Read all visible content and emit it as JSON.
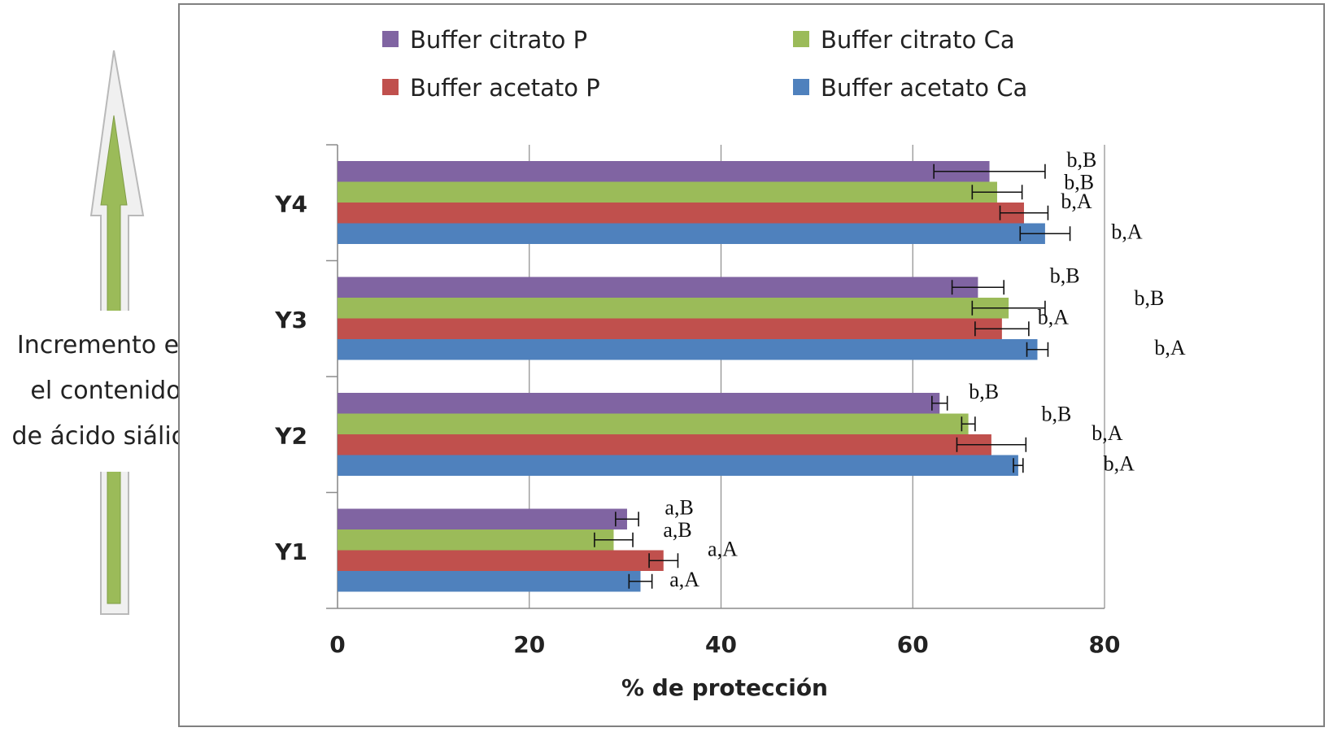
{
  "side_note": {
    "lines": [
      "Incremento en",
      "el contenido",
      "de ácido siálico"
    ],
    "arrow_color": "#9bbb59",
    "icon": "up-arrow-icon"
  },
  "chart_data": {
    "type": "bar",
    "orientation": "horizontal",
    "categories": [
      "Y1",
      "Y2",
      "Y3",
      "Y4"
    ],
    "xlabel": "% de protección",
    "xlim": [
      0,
      80
    ],
    "xticks": [
      0,
      20,
      40,
      60,
      80
    ],
    "grid": true,
    "legend_position": "top",
    "series": [
      {
        "name": "Buffer citrato P",
        "color": "#8064a2",
        "values": [
          30.2,
          62.8,
          66.8,
          68.0
        ],
        "errors": [
          1.2,
          0.8,
          2.7,
          5.8
        ],
        "labels": [
          "a,B",
          "b,B",
          "b,B",
          "b,B"
        ]
      },
      {
        "name": "Buffer citrato Ca",
        "color": "#9bbb59",
        "values": [
          28.8,
          65.8,
          70.0,
          68.8
        ],
        "errors": [
          2.0,
          0.7,
          3.8,
          2.6
        ],
        "labels": [
          "a,B",
          "b,B",
          "b,B",
          "b,B"
        ]
      },
      {
        "name": "Buffer acetato P",
        "color": "#c0504d",
        "values": [
          34.0,
          68.2,
          69.3,
          71.6
        ],
        "errors": [
          1.5,
          3.6,
          2.8,
          2.5
        ],
        "labels": [
          "a,A",
          "b,A",
          "b,A",
          "b,A"
        ]
      },
      {
        "name": "Buffer acetato Ca",
        "color": "#4f81bd",
        "values": [
          31.6,
          71.0,
          73.0,
          73.8
        ],
        "errors": [
          1.2,
          0.5,
          1.1,
          2.6
        ],
        "labels": [
          "a,A",
          "b,A",
          "b,A",
          "b,A"
        ]
      }
    ]
  }
}
